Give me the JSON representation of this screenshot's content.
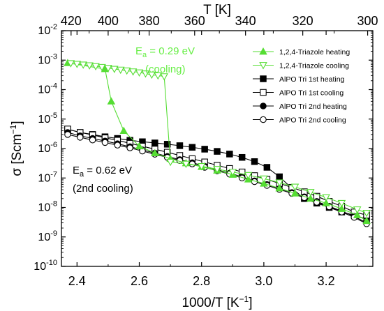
{
  "chart_data": {
    "type": "scatter",
    "xlabel": "1000/T [K",
    "xlabel_sup": "−1",
    "xlabel_end": "]",
    "ylabel": "σ [Scm",
    "ylabel_sup": "−1",
    "ylabel_end": "]",
    "top_axis_label": "T [K]",
    "xlim": [
      2.35,
      3.35
    ],
    "ylim_log10": [
      -10,
      -2
    ],
    "y_scale": "log",
    "x_ticks": [
      "2.4",
      "2.6",
      "2.8",
      "3.0",
      "3.2"
    ],
    "y_tick_exponents": [
      "-2",
      "-3",
      "-4",
      "-5",
      "-6",
      "-7",
      "-8",
      "-9",
      "-10"
    ],
    "y_tick_base": "10",
    "top_ticks": [
      "420",
      "400",
      "380",
      "360",
      "340",
      "320",
      "300"
    ],
    "grid": false,
    "legend_position": "top-right",
    "annotations": [
      {
        "id": "ea-cooling",
        "text_main": "E",
        "text_sub": "a",
        "text_rest": " = 0.29 eV",
        "line2": "(cooling)",
        "color": "#66ee44"
      },
      {
        "id": "ea-2nd",
        "text_main": "E",
        "text_sub": "a",
        "text_rest": " = 0.62 eV",
        "line2": "(2nd cooling)",
        "color": "#000000"
      }
    ],
    "series": [
      {
        "name": "1,2,4-Triazole heating",
        "color": "#55dd33",
        "marker": "triangle-up",
        "filled": true,
        "x": [
          2.37,
          2.49,
          2.51,
          2.55,
          2.6,
          2.65,
          2.7,
          2.75,
          2.8,
          2.85,
          2.9,
          2.95,
          3.0,
          3.05,
          3.1,
          3.15,
          3.2,
          3.25,
          3.3,
          3.33
        ],
        "y": [
          0.0008,
          0.0005,
          4e-05,
          4e-06,
          1.2e-06,
          7e-07,
          4.5e-07,
          3.2e-07,
          2.4e-07,
          1.8e-07,
          1.3e-07,
          9e-08,
          6.5e-08,
          4.5e-08,
          3e-08,
          2e-08,
          1.4e-08,
          9e-09,
          5.5e-09,
          3.5e-09
        ]
      },
      {
        "name": "1,2,4-Triazole cooling",
        "color": "#55dd33",
        "marker": "triangle-down",
        "filled": false,
        "x": [
          2.38,
          2.4,
          2.42,
          2.44,
          2.46,
          2.48,
          2.5,
          2.52,
          2.54,
          2.56,
          2.58,
          2.6,
          2.62,
          2.64,
          2.66,
          2.68,
          2.7,
          2.75,
          2.8,
          2.85,
          2.9,
          2.95,
          3.0,
          3.05,
          3.1,
          3.15,
          3.2,
          3.25,
          3.3,
          3.33
        ],
        "y": [
          0.00078,
          0.00074,
          0.0007,
          0.00066,
          0.00062,
          0.00058,
          0.00054,
          0.0005,
          0.00047,
          0.00044,
          0.00041,
          0.00038,
          0.00035,
          0.00032,
          0.0003,
          0.00028,
          3.5e-07,
          3e-07,
          2.5e-07,
          2e-07,
          1.6e-07,
          1.25e-07,
          9.5e-08,
          7e-08,
          5e-08,
          3.3e-08,
          2.2e-08,
          1.4e-08,
          8.5e-09,
          6.5e-09
        ]
      },
      {
        "name": "AlPO Tri 1st heating",
        "color": "#000000",
        "marker": "square",
        "filled": true,
        "x": [
          2.37,
          2.41,
          2.45,
          2.49,
          2.53,
          2.57,
          2.61,
          2.65,
          2.69,
          2.73,
          2.77,
          2.81,
          2.85,
          2.89,
          2.93,
          2.97,
          3.01,
          3.05,
          3.09,
          3.13,
          3.17,
          3.21,
          3.25,
          3.29,
          3.33
        ],
        "y": [
          4.5e-06,
          3.5e-06,
          3e-06,
          2.5e-06,
          2.2e-06,
          1.9e-06,
          1.7e-06,
          1.55e-06,
          1.4e-06,
          1.25e-06,
          1.1e-06,
          9.5e-07,
          8e-07,
          6.5e-07,
          5e-07,
          3.6e-07,
          2.3e-07,
          1.1e-07,
          4.5e-08,
          2e-08,
          1.4e-08,
          1e-08,
          7e-09,
          5.5e-09,
          4e-09
        ]
      },
      {
        "name": "AlPO Tri 1st cooling",
        "color": "#000000",
        "marker": "square",
        "filled": false,
        "x": [
          2.37,
          2.41,
          2.45,
          2.49,
          2.53,
          2.57,
          2.61,
          2.65,
          2.69,
          2.73,
          2.77,
          2.81,
          2.85,
          2.89,
          2.93,
          2.97,
          3.01,
          3.05,
          3.09,
          3.13,
          3.17,
          3.21,
          3.25,
          3.29,
          3.33
        ],
        "y": [
          4.6e-06,
          3.5e-06,
          2.9e-06,
          2.3e-06,
          1.9e-06,
          1.5e-06,
          1.2e-06,
          9.5e-07,
          7.5e-07,
          5.8e-07,
          4.5e-07,
          3.5e-07,
          2.7e-07,
          2.1e-07,
          1.6e-07,
          1.2e-07,
          9e-08,
          6.5e-08,
          4.8e-08,
          3.4e-08,
          2.4e-08,
          1.6e-08,
          1.1e-08,
          7e-09,
          5.5e-09
        ]
      },
      {
        "name": "AlPO Tri 2nd heating",
        "color": "#000000",
        "marker": "circle",
        "filled": true,
        "x": [
          2.37,
          2.41,
          2.45,
          2.49,
          2.53,
          2.57,
          2.61,
          2.65,
          2.69,
          2.73,
          2.77,
          2.81,
          2.85,
          2.89,
          2.93,
          2.97,
          3.01,
          3.05,
          3.09,
          3.13,
          3.17,
          3.21,
          3.25,
          3.29,
          3.33
        ],
        "y": [
          3.5e-06,
          2.7e-06,
          2.2e-06,
          1.8e-06,
          1.45e-06,
          1.15e-06,
          9e-07,
          7e-07,
          5.4e-07,
          4.2e-07,
          3.3e-07,
          2.5e-07,
          1.9e-07,
          1.45e-07,
          1.1e-07,
          8e-08,
          6e-08,
          4.4e-08,
          3.2e-08,
          2.3e-08,
          1.6e-08,
          1.1e-08,
          7.5e-09,
          5e-09,
          3e-09
        ]
      },
      {
        "name": "AlPO Tri 2nd cooling",
        "color": "#000000",
        "marker": "circle",
        "filled": false,
        "x": [
          2.37,
          2.41,
          2.45,
          2.49,
          2.53,
          2.57,
          2.61,
          2.65,
          2.69,
          2.73,
          2.77,
          2.81,
          2.85,
          2.89,
          2.93,
          2.97,
          3.01,
          3.05,
          3.09,
          3.13,
          3.17,
          3.21,
          3.25,
          3.29,
          3.33
        ],
        "y": [
          3e-06,
          2.4e-06,
          1.95e-06,
          1.6e-06,
          1.3e-06,
          1.05e-06,
          8.2e-07,
          6.4e-07,
          5e-07,
          3.9e-07,
          3e-07,
          2.3e-07,
          1.75e-07,
          1.35e-07,
          1e-07,
          7.5e-08,
          5.6e-08,
          4.1e-08,
          3e-08,
          2.15e-08,
          1.5e-08,
          1.05e-08,
          7e-09,
          4.6e-09,
          2.8e-09
        ]
      }
    ]
  }
}
